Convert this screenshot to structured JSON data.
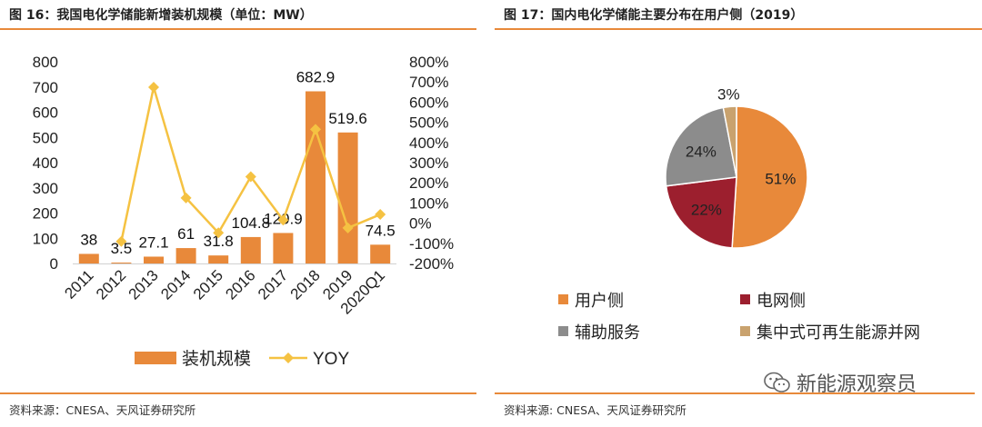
{
  "left": {
    "title": "图 16：我国电化学储能新增装机规模（单位：MW）",
    "source": "资料来源：CNESA、天风证券研究所"
  },
  "right": {
    "title": "图 17：国内电化学储能主要分布在用户侧（2019）",
    "source": "资料来源: CNESA、天风证券研究所"
  },
  "watermark": {
    "text": "新能源观察员",
    "icon": "wechat-icon"
  },
  "chart_data": [
    {
      "type": "bar",
      "title": "图 16：我国电化学储能新增装机规模（单位：MW）",
      "categories": [
        "2011",
        "2012",
        "2013",
        "2014",
        "2015",
        "2016",
        "2017",
        "2018",
        "2019",
        "2020Q1"
      ],
      "series": [
        {
          "name": "装机规模",
          "type": "bar",
          "axis": "left",
          "color": "#e8893a",
          "values": [
            38,
            3.5,
            27.1,
            61,
            31.8,
            104.8,
            120.9,
            682.9,
            519.6,
            74.5
          ],
          "labels": [
            "38",
            "3.5",
            "27.1",
            "61",
            "31.8",
            "104.8",
            "120.9",
            "682.9",
            "519.6",
            "74.5"
          ]
        },
        {
          "name": "YOY",
          "type": "line",
          "axis": "right",
          "color": "#f5c242",
          "marker": "diamond",
          "values": [
            null,
            -91,
            674,
            125,
            -48,
            230,
            15,
            465,
            -24,
            43
          ]
        }
      ],
      "y_left": {
        "min": 0,
        "max": 800,
        "ticks": [
          "0",
          "100",
          "200",
          "300",
          "400",
          "500",
          "600",
          "700",
          "800"
        ]
      },
      "y_right": {
        "min": -200,
        "max": 800,
        "ticks": [
          "-200%",
          "-100%",
          "0%",
          "100%",
          "200%",
          "300%",
          "400%",
          "500%",
          "600%",
          "700%",
          "800%"
        ]
      },
      "legend": {
        "position": "bottom",
        "items": [
          "装机规模",
          "YOY"
        ]
      },
      "grid": false
    },
    {
      "type": "pie",
      "title": "图 17：国内电化学储能主要分布在用户侧（2019）",
      "slices": [
        {
          "name": "用户侧",
          "value": 51,
          "label": "51%",
          "color": "#e8893a"
        },
        {
          "name": "电网侧",
          "value": 22,
          "label": "22%",
          "color": "#9c1f2e"
        },
        {
          "name": "辅助服务",
          "value": 24,
          "label": "24%",
          "color": "#8c8c8c"
        },
        {
          "name": "集中式可再生能源并网",
          "value": 3,
          "label": "3%",
          "color": "#c9a26e"
        }
      ],
      "legend": {
        "position": "bottom",
        "columns": 2
      }
    }
  ]
}
